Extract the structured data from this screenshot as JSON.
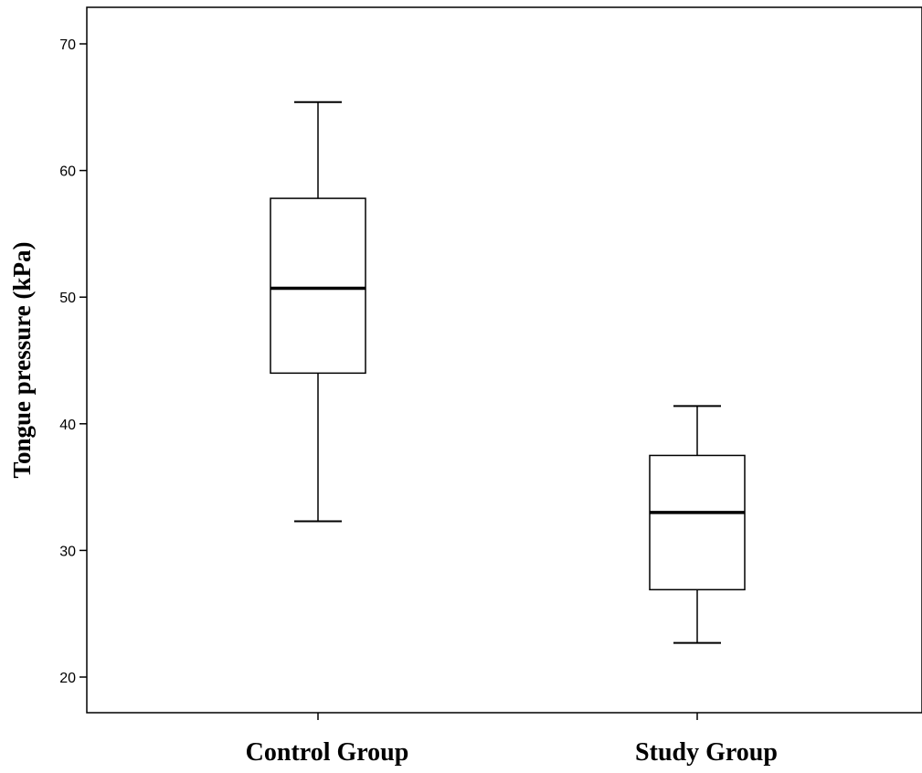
{
  "chart_data": {
    "type": "boxplot",
    "title": "",
    "xlabel": "",
    "ylabel": "Tongue pressure (kPa)",
    "ylim": [
      17,
      74
    ],
    "yticks": [
      20,
      30,
      40,
      50,
      60,
      70
    ],
    "grid": false,
    "categories": [
      "Control Group",
      "Study Group"
    ],
    "boxes": [
      {
        "category": "Control Group",
        "min": 32.3,
        "q1": 44.0,
        "median": 50.7,
        "q3": 57.8,
        "max": 65.4
      },
      {
        "category": "Study Group",
        "min": 22.7,
        "q1": 26.9,
        "median": 33.0,
        "q3": 37.5,
        "max": 41.4
      }
    ]
  }
}
